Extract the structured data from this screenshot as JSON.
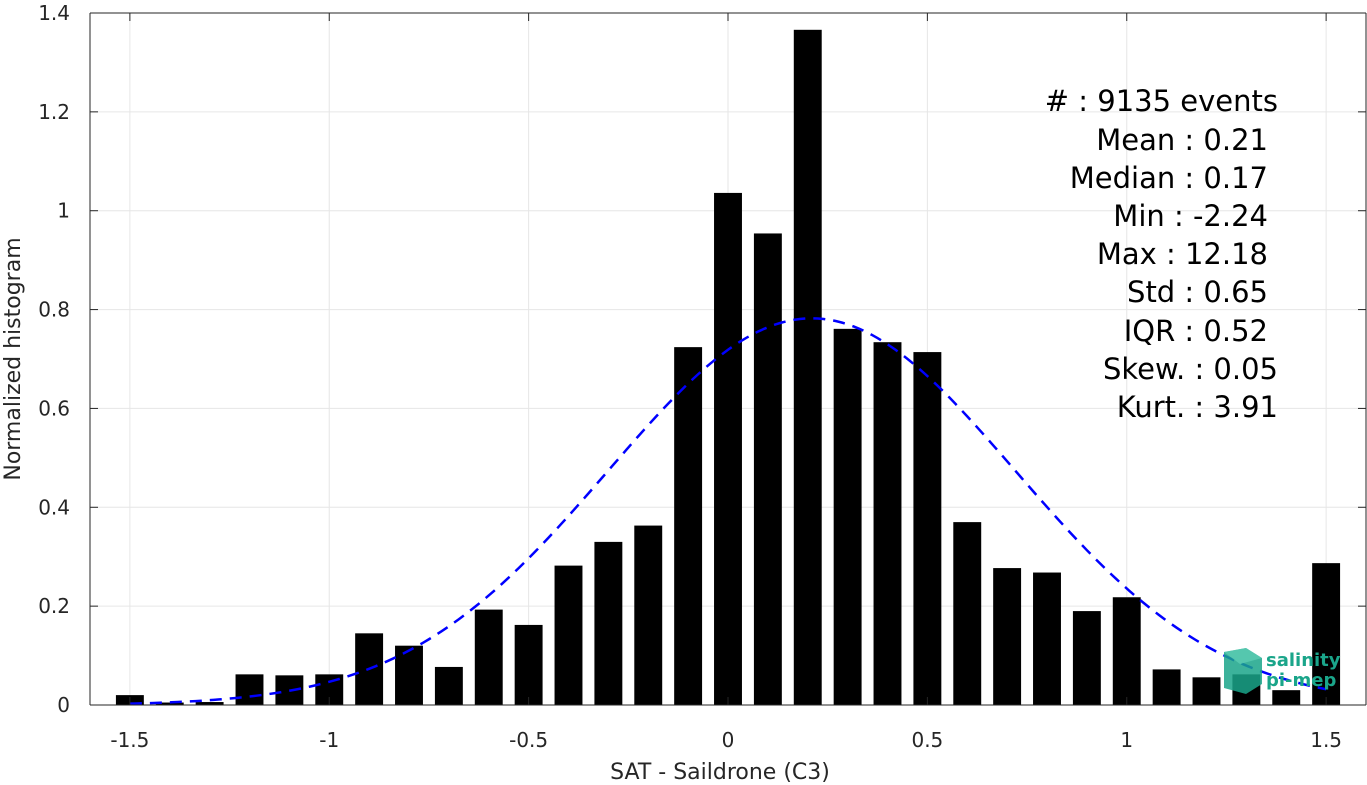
{
  "chart_data": {
    "type": "bar",
    "xlabel": "SAT - Saildrone (C3)",
    "ylabel": "Normalized histogram",
    "xlim": [
      -1.6,
      1.6
    ],
    "ylim": [
      0,
      1.4
    ],
    "xticks": [
      -1.5,
      -1,
      -0.5,
      0,
      0.5,
      1,
      1.5
    ],
    "xtick_labels": [
      "-1.5",
      "-1",
      "-0.5",
      "0",
      "0.5",
      "1",
      "1.5"
    ],
    "yticks": [
      0,
      0.2,
      0.4,
      0.6,
      0.8,
      1,
      1.2,
      1.4
    ],
    "ytick_labels": [
      "0",
      "0.2",
      "0.4",
      "0.6",
      "0.8",
      "1",
      "1.2",
      "1.4"
    ],
    "grid": true,
    "bar_color": "#000000",
    "bar_width": 0.07,
    "x": [
      -1.5,
      -1.4,
      -1.3,
      -1.2,
      -1.1,
      -1.0,
      -0.9,
      -0.8,
      -0.7,
      -0.6,
      -0.5,
      -0.4,
      -0.3,
      -0.2,
      -0.1,
      0.0,
      0.1,
      0.2,
      0.3,
      0.4,
      0.5,
      0.6,
      0.7,
      0.8,
      0.9,
      1.0,
      1.1,
      1.2,
      1.3,
      1.4,
      1.5
    ],
    "values": [
      0.02,
      0.005,
      0.006,
      0.062,
      0.06,
      0.062,
      0.145,
      0.12,
      0.077,
      0.193,
      0.162,
      0.282,
      0.33,
      0.363,
      0.724,
      1.036,
      0.954,
      1.366,
      0.761,
      0.734,
      0.714,
      0.37,
      0.277,
      0.268,
      0.19,
      0.218,
      0.072,
      0.056,
      0.062,
      0.03,
      0.287
    ],
    "fit": {
      "type": "gaussian",
      "mean": 0.21,
      "std": 0.51,
      "color": "#0000ff",
      "style": "dashed",
      "x_range": [
        -1.5,
        1.5
      ]
    },
    "stats_lines": [
      "#  : 9135 events",
      "Mean : 0.21",
      "Median : 0.17",
      "Min : -2.24",
      "Max : 12.18",
      "Std : 0.65",
      "IQR : 0.52",
      "Skew. : 0.05",
      "Kurt. : 3.91"
    ]
  },
  "watermark": {
    "line1": "salinity",
    "line2": "pi-mep",
    "color": "#1aa58a"
  }
}
